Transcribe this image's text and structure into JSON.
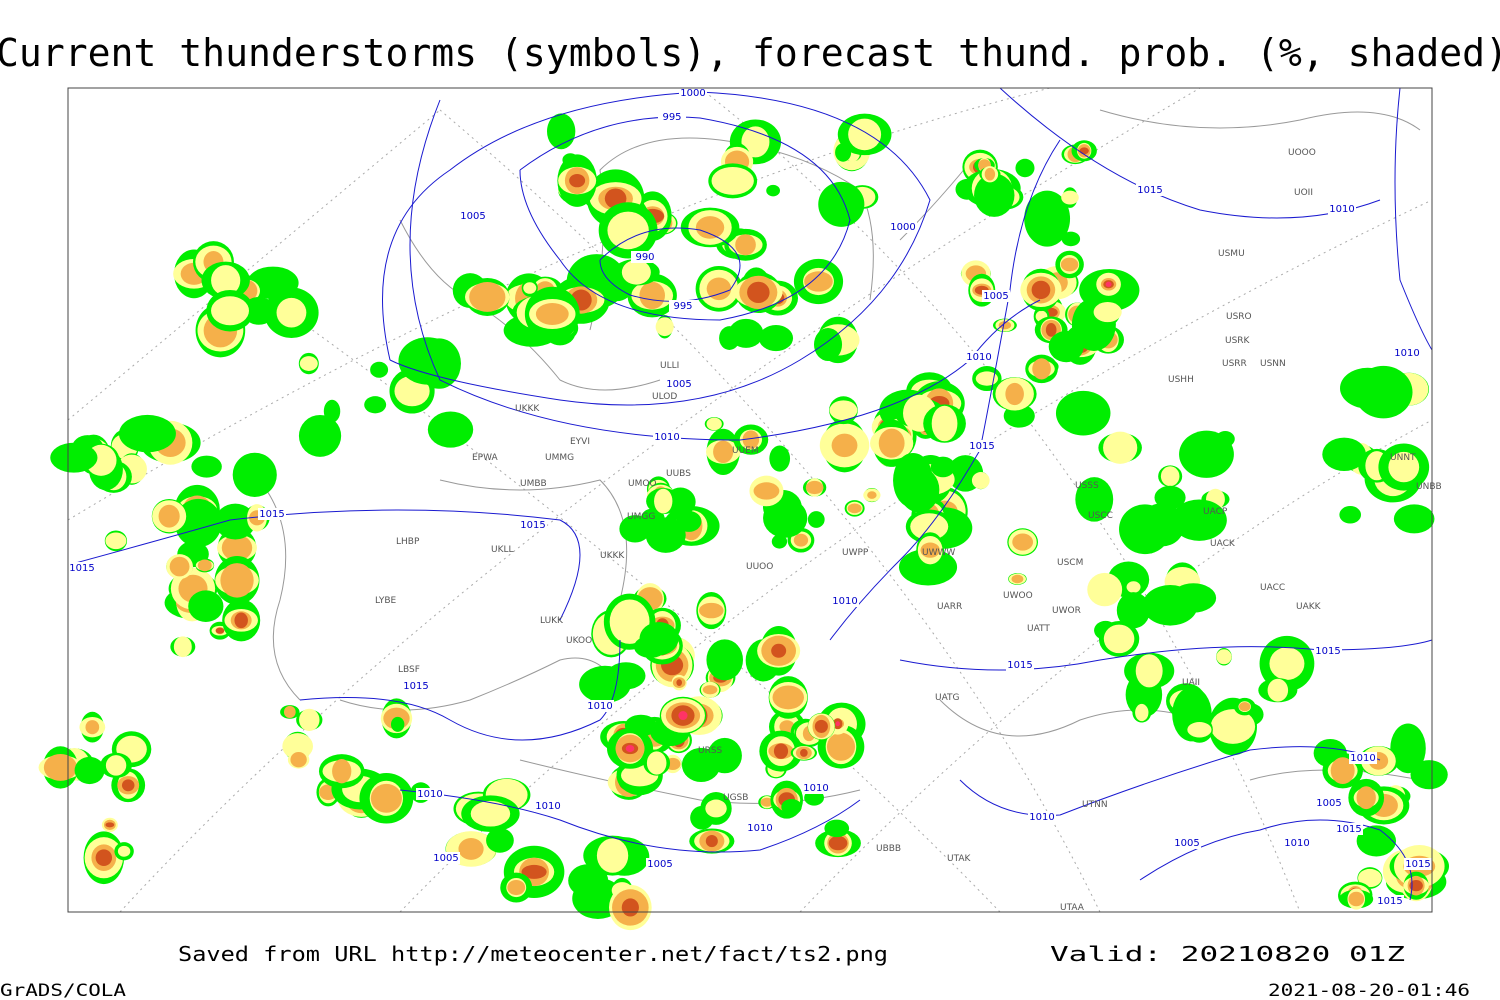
{
  "title": "Current thunderstorms (symbols), forecast thund. prob. (%, shaded)",
  "footer": {
    "source": "Saved from URL http://meteocenter.net/fact/ts2.png",
    "valid": "Valid: 20210820 01Z",
    "software": "GrADS/COLA",
    "timestamp": "2021-08-20-01:46"
  },
  "isobar_labels": [
    1000,
    995,
    1005,
    990,
    995,
    1000,
    1005,
    1010,
    1015,
    1010,
    1005,
    1010,
    1015,
    1015,
    1015,
    1015,
    1010,
    1015,
    1015,
    1015,
    1010,
    1010,
    1010,
    1010,
    1010,
    1005,
    1005,
    1010,
    1005,
    1010,
    1005,
    1015,
    1010,
    1015,
    1015,
    1010
  ],
  "stations": [
    "ULLI",
    "ULOD",
    "UKKK",
    "EYVI",
    "EPWA",
    "UMMG",
    "UMBB",
    "UUEM",
    "UMOO",
    "UUBS",
    "UMGG",
    "UKLL",
    "LHBP",
    "LYBE",
    "UKKK",
    "UUOO",
    "LUKK",
    "UKOO",
    "LBSF",
    "URSS",
    "UGSB",
    "UBBB",
    "UTAK",
    "UATG",
    "UATT",
    "UWOO",
    "UWOR",
    "UARR",
    "USCM",
    "UACC",
    "UAKK",
    "UAII",
    "UTAA",
    "UTNN",
    "USSS",
    "USCC",
    "UACP",
    "UACK",
    "USHH",
    "USRR",
    "USRK",
    "USNN",
    "USRO",
    "USMU",
    "UOOO",
    "UOII",
    "UNNT",
    "UNBB",
    "UWWW",
    "UWPP"
  ]
}
